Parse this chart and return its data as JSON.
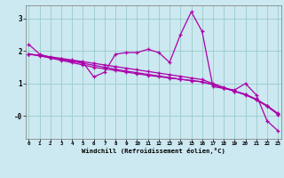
{
  "xlabel": "Windchill (Refroidissement éolien,°C)",
  "bg_color": "#cce8f0",
  "line_color": "#aa00aa",
  "grid_color": "#99cccc",
  "hours": [
    0,
    1,
    2,
    3,
    4,
    5,
    6,
    7,
    8,
    9,
    10,
    11,
    12,
    13,
    14,
    15,
    16,
    17,
    18,
    19,
    20,
    21,
    22,
    23
  ],
  "series1": [
    2.2,
    1.9,
    1.8,
    1.75,
    1.7,
    1.65,
    1.2,
    1.35,
    1.9,
    1.95,
    1.95,
    2.05,
    1.95,
    1.65,
    2.5,
    3.2,
    2.6,
    0.9,
    0.85,
    0.8,
    1.0,
    0.65,
    -0.15,
    -0.45
  ],
  "series2": [
    1.9,
    1.87,
    1.82,
    1.77,
    1.72,
    1.67,
    1.62,
    1.57,
    1.52,
    1.47,
    1.42,
    1.37,
    1.32,
    1.27,
    1.22,
    1.17,
    1.12,
    1.0,
    0.88,
    0.76,
    0.65,
    0.5,
    0.3,
    0.05
  ],
  "series3": [
    1.9,
    1.86,
    1.8,
    1.74,
    1.68,
    1.62,
    1.56,
    1.5,
    1.44,
    1.38,
    1.33,
    1.28,
    1.23,
    1.18,
    1.13,
    1.09,
    1.05,
    0.97,
    0.87,
    0.77,
    0.67,
    0.52,
    0.32,
    0.08
  ],
  "series4": [
    1.9,
    1.85,
    1.78,
    1.71,
    1.64,
    1.57,
    1.5,
    1.45,
    1.4,
    1.35,
    1.3,
    1.25,
    1.21,
    1.17,
    1.13,
    1.09,
    1.05,
    0.96,
    0.86,
    0.76,
    0.66,
    0.51,
    0.31,
    0.07
  ],
  "ylim": [
    -0.7,
    3.4
  ],
  "yticks": [
    0,
    1,
    2,
    3
  ],
  "ytick_labels": [
    "-0",
    "1",
    "2",
    "3"
  ],
  "xlim": [
    -0.3,
    23.3
  ]
}
